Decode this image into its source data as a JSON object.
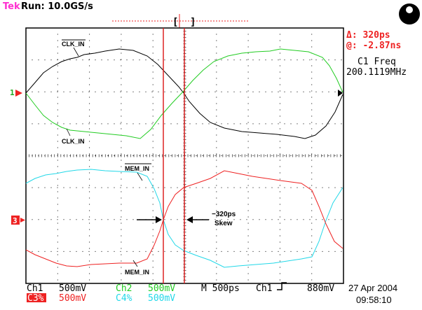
{
  "header": {
    "brand": "Tek",
    "status": "Run: 10.0GS/s",
    "trigger_bracket_left": "[",
    "trigger_bracket_right": "]"
  },
  "readouts": {
    "delta_label": "Δ: 320ps",
    "at_label": "@: -2.87ns",
    "freq_title": "C1 Freq",
    "freq_value": "200.1119MHz"
  },
  "markers": {
    "ch1": "1",
    "ch3": "3"
  },
  "annotations": {
    "clk_in_top": "CLK_IN",
    "clk_in_bottom": "CLK_IN",
    "mem_in_top": "MEM_IN",
    "mem_in_bottom": "MEM_IN",
    "skew_value": "−320ps",
    "skew_label": "Skew"
  },
  "footer": {
    "ch1_label": "Ch1",
    "ch1_scale": "500mV",
    "ch2_label": "Ch2",
    "ch2_scale": "500mV",
    "timebase": "M 500ps",
    "trigger_source": "Ch1",
    "trigger_level": "880mV",
    "ch3_label": "C3%",
    "ch3_scale": "500mV",
    "ch4_label": "C4%",
    "ch4_scale": "500mV",
    "date": "27 Apr 2004",
    "time": "09:58:10"
  },
  "colors": {
    "ch1": "#000000",
    "ch2": "#22cc22",
    "ch3": "#ee2222",
    "ch4": "#22d8e8",
    "cursor": "#dd2222",
    "grid": "#000000",
    "brand": "#ff2fd0"
  }
}
